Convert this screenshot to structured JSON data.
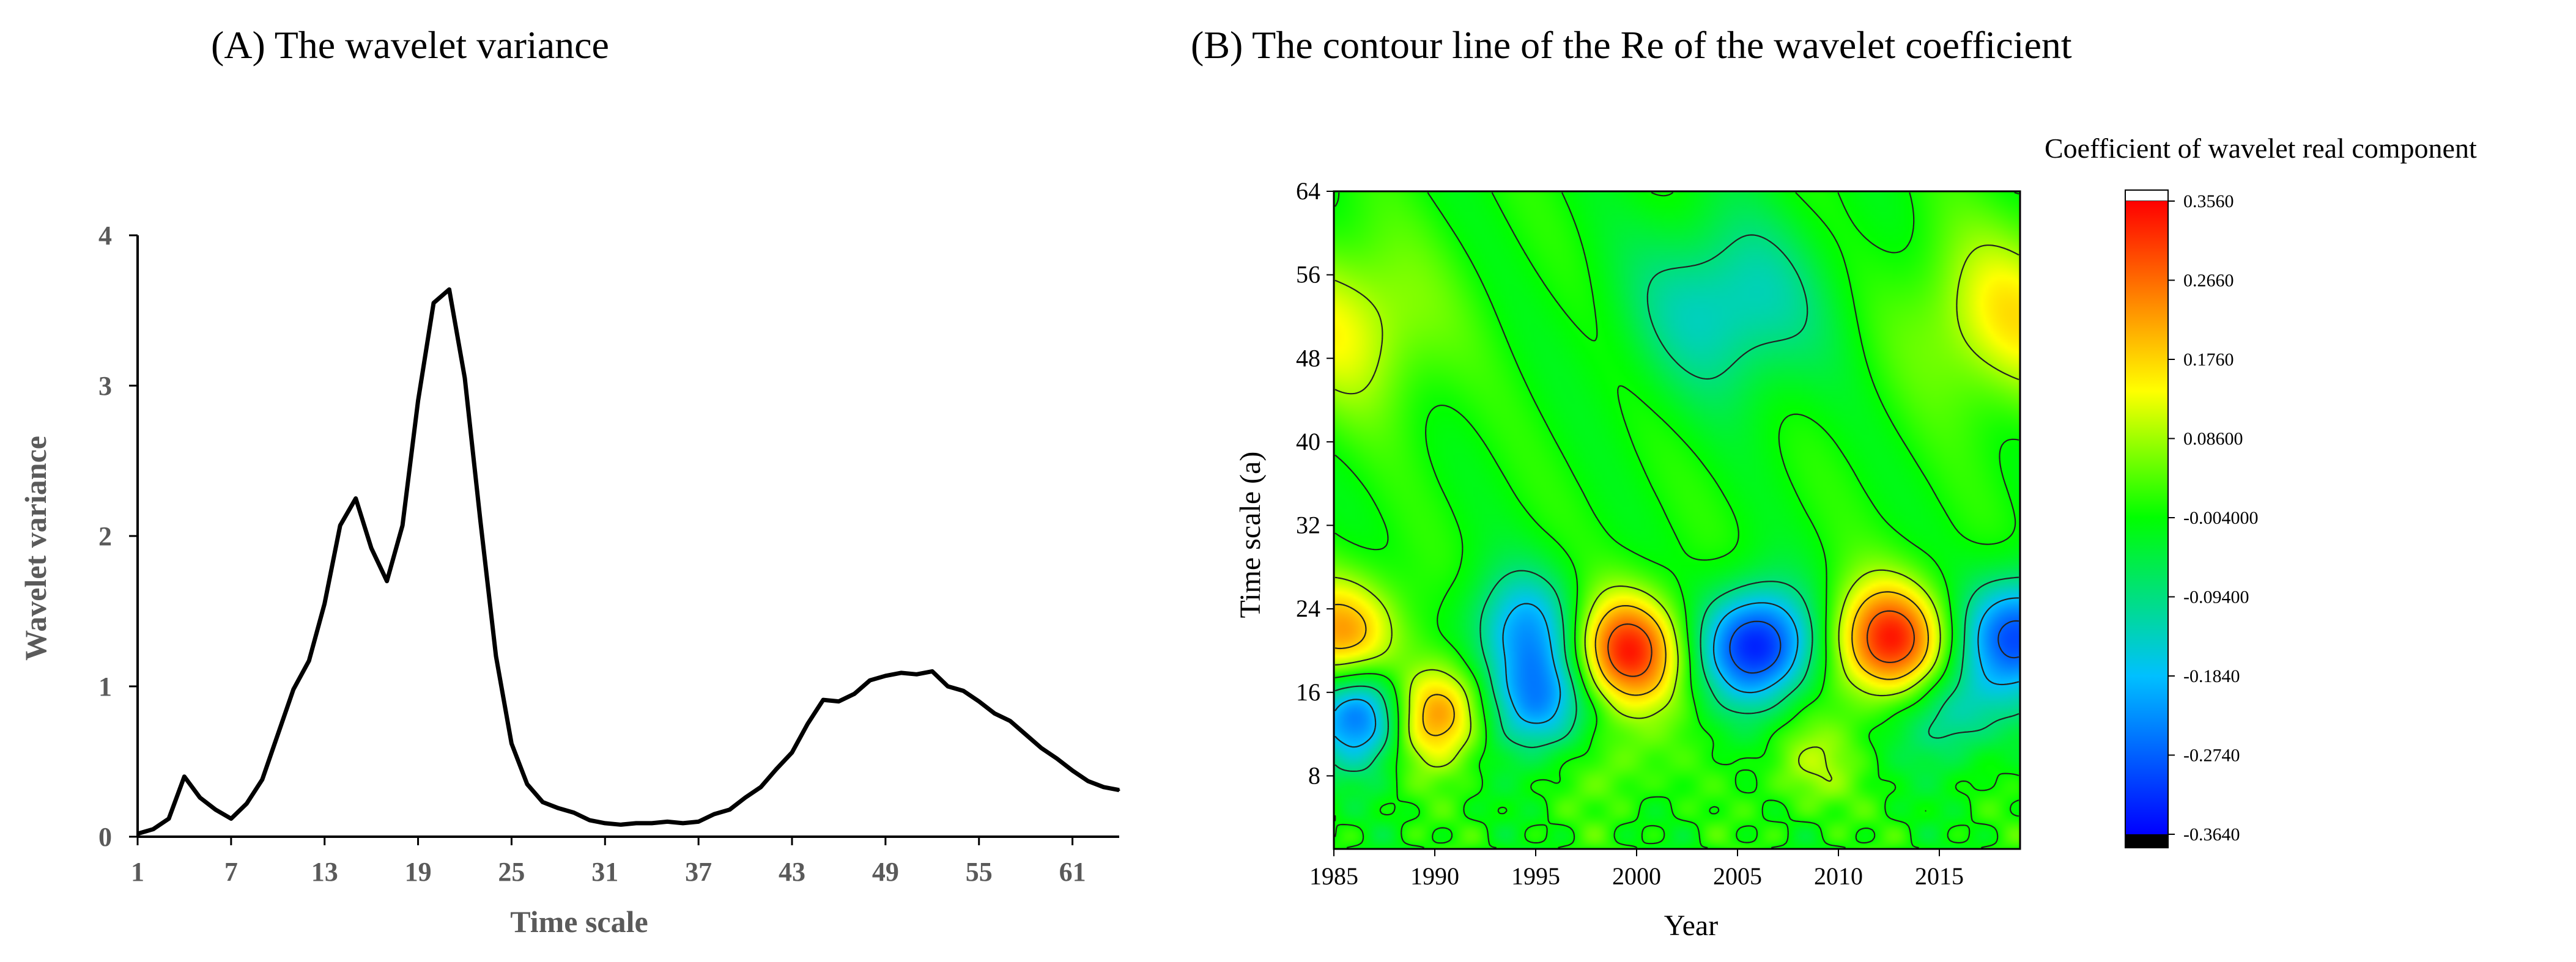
{
  "chart_data": [
    {
      "id": "A",
      "type": "line",
      "title": "(A) The wavelet variance",
      "xlabel": "Time scale",
      "ylabel": "Wavelet variance",
      "xlim": [
        1,
        64
      ],
      "ylim": [
        0,
        4
      ],
      "xticks": [
        1,
        7,
        13,
        19,
        25,
        31,
        37,
        43,
        49,
        55,
        61
      ],
      "yticks": [
        0,
        1,
        2,
        3,
        4
      ],
      "x": [
        1,
        2,
        3,
        4,
        5,
        6,
        7,
        8,
        9,
        10,
        11,
        12,
        13,
        14,
        15,
        16,
        17,
        18,
        19,
        20,
        21,
        22,
        23,
        24,
        25,
        26,
        27,
        28,
        29,
        30,
        31,
        32,
        33,
        34,
        35,
        36,
        37,
        38,
        39,
        40,
        41,
        42,
        43,
        44,
        45,
        46,
        47,
        48,
        49,
        50,
        51,
        52,
        53,
        54,
        55,
        56,
        57,
        58,
        59,
        60,
        61,
        62,
        63,
        64
      ],
      "series": [
        {
          "name": "Wavelet variance",
          "values": [
            0.02,
            0.05,
            0.12,
            0.4,
            0.26,
            0.18,
            0.12,
            0.22,
            0.38,
            0.68,
            0.98,
            1.17,
            1.55,
            2.07,
            2.25,
            1.92,
            1.7,
            2.07,
            2.9,
            3.55,
            3.64,
            3.05,
            2.1,
            1.2,
            0.62,
            0.35,
            0.23,
            0.19,
            0.16,
            0.11,
            0.09,
            0.08,
            0.09,
            0.09,
            0.1,
            0.09,
            0.1,
            0.15,
            0.18,
            0.26,
            0.33,
            0.45,
            0.56,
            0.75,
            0.91,
            0.9,
            0.95,
            1.04,
            1.07,
            1.09,
            1.08,
            1.1,
            1.0,
            0.97,
            0.9,
            0.82,
            0.77,
            0.68,
            0.59,
            0.52,
            0.44,
            0.37,
            0.33,
            0.31
          ]
        }
      ]
    },
    {
      "id": "B",
      "type": "heatmap",
      "title": "(B) The contour line of the Re of the wavelet coefficient",
      "xlabel": "Year",
      "ylabel": "Time scale (a)",
      "xlim": [
        1985,
        2019
      ],
      "ylim": [
        1,
        64
      ],
      "xticks": [
        1985,
        1990,
        1995,
        2000,
        2005,
        2010,
        2015
      ],
      "yticks": [
        8,
        16,
        24,
        32,
        40,
        48,
        56,
        64
      ],
      "colorbar": {
        "title": "Coefficient of wavelet real component",
        "range": [
          -0.364,
          0.356
        ],
        "ticks": [
          "0.3560",
          "0.2660",
          "0.1760",
          "0.08600",
          "-0.004000",
          "-0.09400",
          "-0.1840",
          "-0.2740",
          "-0.3640"
        ],
        "colors": [
          "#000000",
          "#0000ff",
          "#00c0ff",
          "#00ff00",
          "#ffff00",
          "#ff8000",
          "#ff0000",
          "#ffffff"
        ]
      },
      "features": [
        {
          "year": 1985.5,
          "scale": 21.5,
          "value": 0.22
        },
        {
          "year": 1986.5,
          "scale": 14,
          "value": -0.3
        },
        {
          "year": 1990,
          "scale": 14,
          "value": 0.27
        },
        {
          "year": 1994.5,
          "scale": 22,
          "value": -0.2
        },
        {
          "year": 1995,
          "scale": 15,
          "value": -0.23
        },
        {
          "year": 1999.5,
          "scale": 20,
          "value": 0.33
        },
        {
          "year": 2006,
          "scale": 20.5,
          "value": -0.35
        },
        {
          "year": 2012.5,
          "scale": 21,
          "value": 0.33
        },
        {
          "year": 2019,
          "scale": 21.5,
          "value": -0.3
        },
        {
          "year": 2015.5,
          "scale": 14,
          "value": -0.14
        },
        {
          "year": 2004.5,
          "scale": 53,
          "value": -0.15
        },
        {
          "year": 1985.5,
          "scale": 51,
          "value": 0.13
        },
        {
          "year": 2018.5,
          "scale": 52,
          "value": 0.15
        },
        {
          "year": 1999,
          "scale": 9,
          "value": 0.06
        },
        {
          "year": 2008.5,
          "scale": 9,
          "value": 0.09
        }
      ]
    }
  ]
}
